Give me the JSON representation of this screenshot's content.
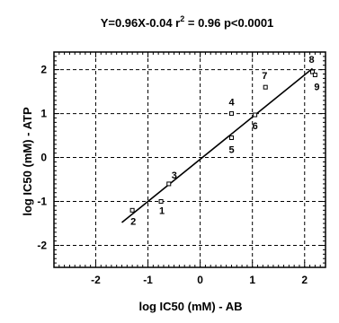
{
  "chart_data": {
    "type": "scatter",
    "title": {
      "prefix": "Y=0.96X-0.04 r",
      "superscript": "2",
      "suffix": " = 0.96 p<0.0001"
    },
    "xlabel": "log IC50 (mM) - AB",
    "ylabel": "log IC50 (mM) - ATP",
    "xlim": [
      -2.8,
      2.4
    ],
    "ylim": [
      -2.5,
      2.4
    ],
    "x_ticks": [
      -2,
      -1,
      0,
      1,
      2
    ],
    "y_ticks": [
      -2,
      -1,
      0,
      1,
      2
    ],
    "x_tick_labels": [
      "-2",
      "-1",
      "0",
      "1",
      "2"
    ],
    "y_tick_labels": [
      "-2",
      "-1",
      "0",
      "1",
      "2"
    ],
    "grid": true,
    "regression": {
      "slope": 0.96,
      "intercept": -0.04,
      "x_range": [
        -1.5,
        2.15
      ]
    },
    "points": [
      {
        "label": "1",
        "x": -0.75,
        "y": -1.0
      },
      {
        "label": "2",
        "x": -1.3,
        "y": -1.2
      },
      {
        "label": "3",
        "x": -0.6,
        "y": -0.6
      },
      {
        "label": "4",
        "x": 0.6,
        "y": 1.0
      },
      {
        "label": "5",
        "x": 0.6,
        "y": 0.45
      },
      {
        "label": "6",
        "x": 1.05,
        "y": 0.97
      },
      {
        "label": "7",
        "x": 1.25,
        "y": 1.6
      },
      {
        "label": "8",
        "x": 2.15,
        "y": 1.95
      },
      {
        "label": "9",
        "x": 2.2,
        "y": 1.88
      }
    ]
  }
}
